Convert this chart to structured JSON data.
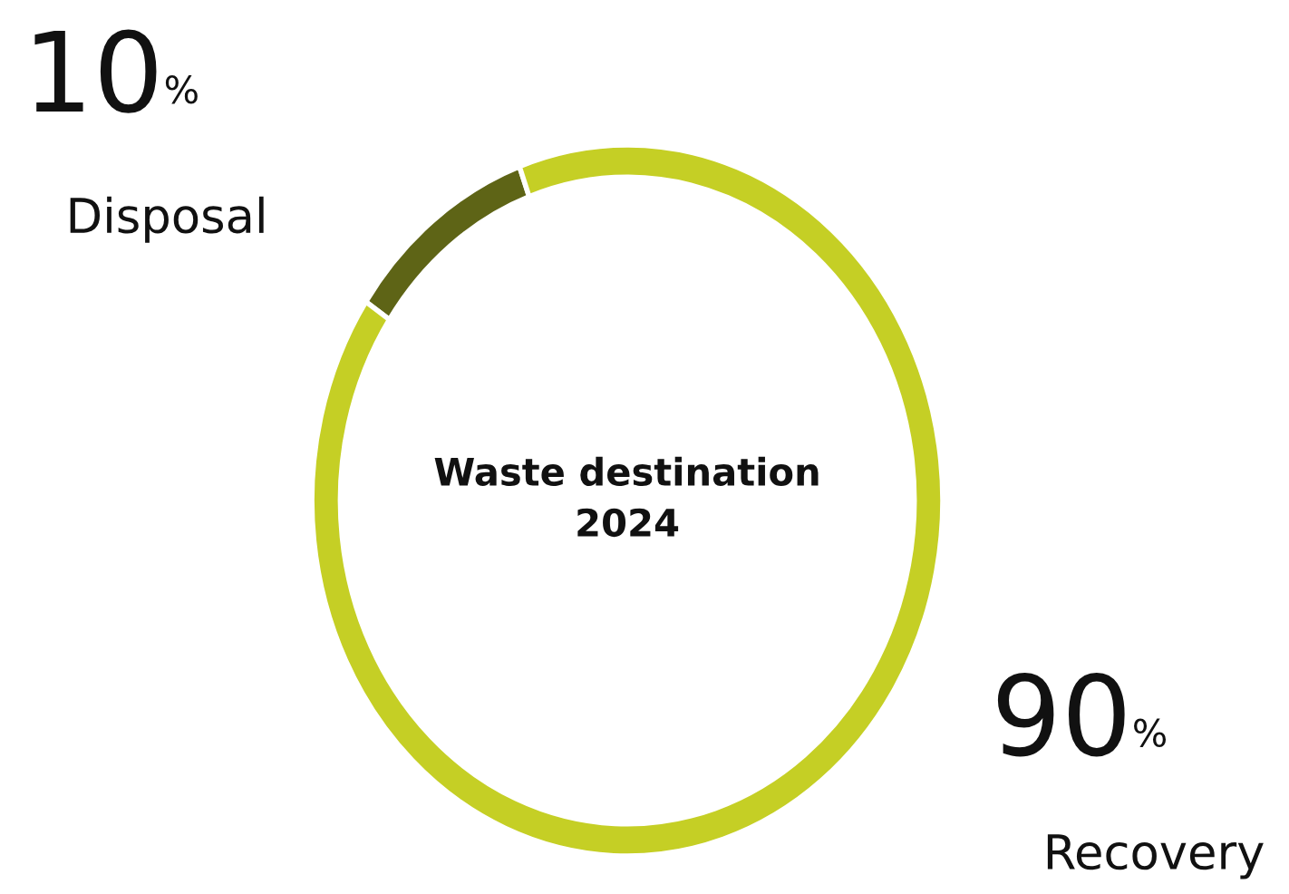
{
  "chart_data": {
    "type": "donut",
    "title": "Waste destination\n2024",
    "categories": [
      "Disposal",
      "Recovery"
    ],
    "values": [
      10,
      90
    ],
    "value_labels": [
      "10%",
      "90%"
    ],
    "colors": [
      "#5e6416",
      "#c5cf25"
    ]
  }
}
